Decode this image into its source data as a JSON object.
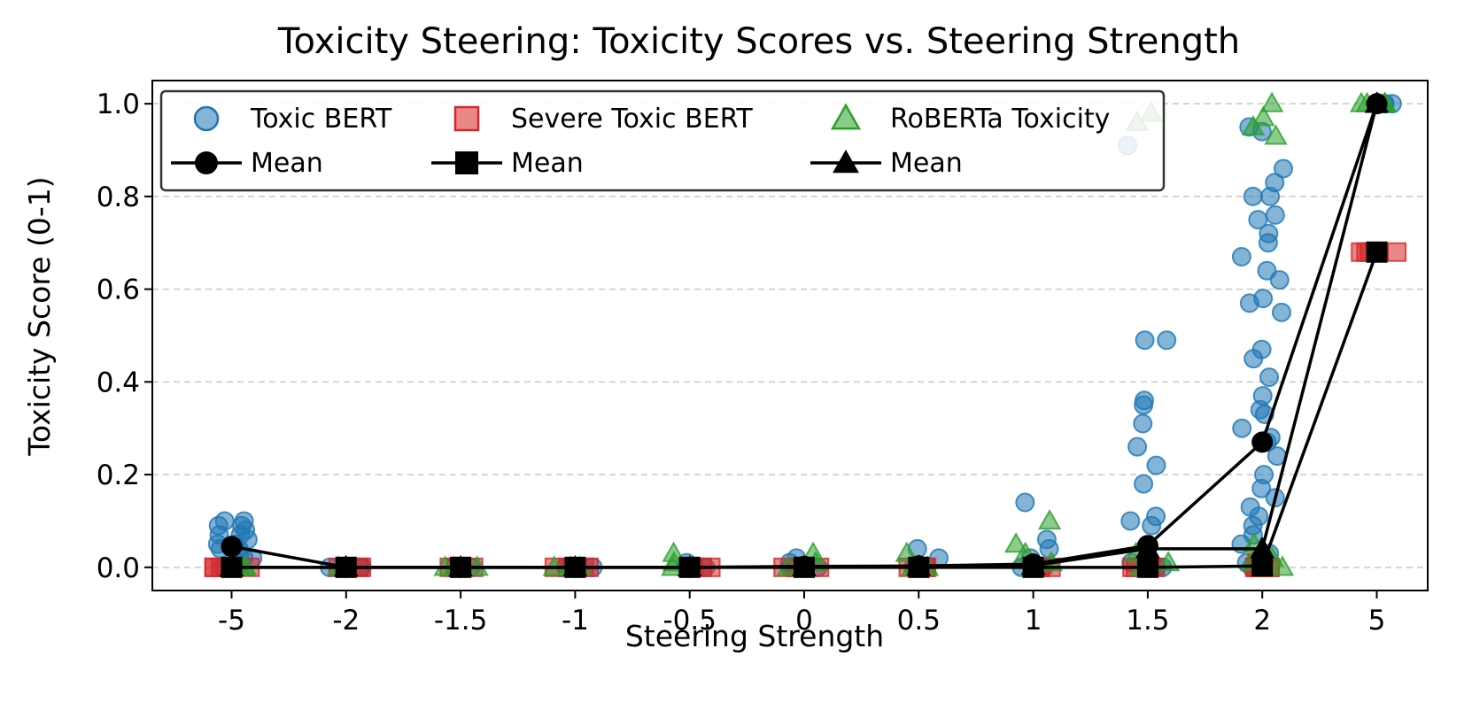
{
  "chart_data": {
    "type": "scatter",
    "title": "Toxicity Steering: Toxicity Scores vs. Steering Strength",
    "xlabel": "Steering Strength",
    "ylabel": "Toxicity Score (0-1)",
    "categories": [
      "-5",
      "-2",
      "-1.5",
      "-1",
      "-0.5",
      "0",
      "0.5",
      "1",
      "1.5",
      "2",
      "5"
    ],
    "ylim": [
      -0.05,
      1.05
    ],
    "yticks": [
      "0.0",
      "0.2",
      "0.4",
      "0.6",
      "0.8",
      "1.0"
    ],
    "grid": "horizontal dashed",
    "legend_position": "top-left",
    "series": [
      {
        "name": "Toxic BERT",
        "kind": "points",
        "marker": "circle",
        "color": "#1f77b4",
        "points": {
          "-5": [
            0.0,
            0.0,
            0.01,
            0.02,
            0.03,
            0.04,
            0.05,
            0.06,
            0.07,
            0.08,
            0.09,
            0.1,
            0.1,
            0.09,
            0.05,
            0.04,
            0.07,
            0.02
          ],
          "-2": [
            0.0,
            0.0,
            0.0
          ],
          "-1.5": [
            0.0,
            0.0,
            0.0
          ],
          "-1": [
            0.0,
            0.0,
            0.0
          ],
          "-0.5": [
            0.0,
            0.0,
            0.01
          ],
          "0": [
            0.0,
            0.0,
            0.01,
            0.02
          ],
          "0.5": [
            0.0,
            0.0,
            0.02,
            0.04
          ],
          "1": [
            0.0,
            0.0,
            0.02,
            0.04,
            0.06,
            0.14
          ],
          "1.5": [
            0.0,
            0.0,
            0.0,
            0.01,
            0.09,
            0.1,
            0.11,
            0.18,
            0.22,
            0.26,
            0.31,
            0.35,
            0.36,
            0.49,
            0.49,
            0.91
          ],
          "2": [
            0.0,
            0.01,
            0.03,
            0.05,
            0.07,
            0.09,
            0.11,
            0.13,
            0.15,
            0.17,
            0.2,
            0.24,
            0.27,
            0.28,
            0.3,
            0.33,
            0.34,
            0.37,
            0.41,
            0.45,
            0.47,
            0.55,
            0.57,
            0.58,
            0.62,
            0.64,
            0.67,
            0.7,
            0.72,
            0.75,
            0.76,
            0.8,
            0.8,
            0.83,
            0.86,
            0.94,
            0.95
          ],
          "5": [
            1.0,
            1.0,
            1.0,
            1.0,
            1.0
          ]
        }
      },
      {
        "name": "Severe Toxic BERT",
        "kind": "points",
        "marker": "square",
        "color": "#d62728",
        "points": {
          "-5": [
            0.0,
            0.0,
            0.0,
            0.0
          ],
          "-2": [
            0.0,
            0.0,
            0.0,
            0.0
          ],
          "-1.5": [
            0.0,
            0.0,
            0.0,
            0.0
          ],
          "-1": [
            0.0,
            0.0,
            0.0,
            0.0
          ],
          "-0.5": [
            0.0,
            0.0,
            0.0
          ],
          "0": [
            0.0,
            0.0,
            0.0
          ],
          "0.5": [
            0.0,
            0.0,
            0.0,
            0.0
          ],
          "1": [
            0.0,
            0.0,
            0.0,
            0.0
          ],
          "1.5": [
            0.0,
            0.0,
            0.0,
            0.0
          ],
          "2": [
            0.0,
            0.0,
            0.0,
            0.0,
            0.0,
            0.01
          ],
          "5": [
            0.68,
            0.68,
            0.68,
            0.68,
            0.68
          ]
        }
      },
      {
        "name": "RoBERTa Toxicity",
        "kind": "points",
        "marker": "triangle",
        "color": "#2ca02c",
        "points": {
          "-5": [
            0.0,
            0.0,
            0.0,
            0.0
          ],
          "-2": [
            0.0,
            0.0,
            0.0
          ],
          "-1.5": [
            0.0,
            0.0,
            0.0
          ],
          "-1": [
            0.0,
            0.0,
            0.0
          ],
          "-0.5": [
            0.0,
            0.01,
            0.03
          ],
          "0": [
            0.0,
            0.01,
            0.03
          ],
          "0.5": [
            0.0,
            0.0,
            0.03
          ],
          "1": [
            0.0,
            0.01,
            0.03,
            0.05,
            0.1
          ],
          "1.5": [
            0.0,
            0.01,
            0.03,
            0.96,
            0.98
          ],
          "2": [
            0.0,
            0.01,
            0.02,
            0.05,
            0.93,
            0.95,
            0.97,
            1.0
          ],
          "5": [
            1.0,
            1.0,
            1.0,
            1.0,
            1.0
          ]
        }
      },
      {
        "name": "Mean",
        "of": "Toxic BERT",
        "kind": "mean",
        "marker": "circle",
        "color": "#000000",
        "values": [
          0.045,
          0.0,
          0.0,
          0.0,
          0.0,
          0.002,
          0.003,
          0.007,
          0.047,
          0.27,
          1.0
        ]
      },
      {
        "name": "Mean",
        "of": "Severe Toxic BERT",
        "kind": "mean",
        "marker": "square",
        "color": "#000000",
        "values": [
          0.0,
          0.0,
          0.0,
          0.0,
          0.0,
          0.0,
          0.0,
          0.0,
          0.0,
          0.003,
          0.68
        ]
      },
      {
        "name": "Mean",
        "of": "RoBERTa Toxicity",
        "kind": "mean",
        "marker": "triangle",
        "color": "#000000",
        "values": [
          0.0,
          0.0,
          0.0,
          0.0,
          0.0,
          0.001,
          0.002,
          0.004,
          0.04,
          0.04,
          1.0
        ]
      }
    ]
  }
}
